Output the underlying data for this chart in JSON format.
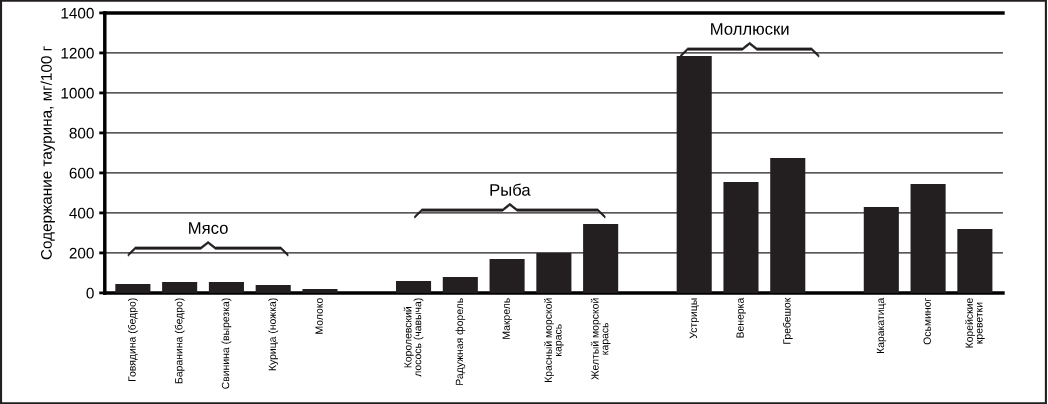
{
  "chart_data": {
    "type": "bar",
    "ylabel": "Содержание таурина, мг/100 г",
    "categories": [
      "Говядина (бедро)",
      "Баранина (бедро)",
      "Свинина (вырезка)",
      "Курица (ножка)",
      "Молоко",
      null,
      "Королевский\nлосось (чавыча)",
      "Радужная форель",
      "Макрель",
      "Красный морской\nкарась",
      "Желтый морской\nкарась",
      null,
      "Устрицы",
      "Венерка",
      "Гребешок",
      null,
      "Каракатица",
      "Осьминог",
      "Корейские\nкреветки"
    ],
    "values": [
      45,
      55,
      55,
      40,
      20,
      null,
      60,
      80,
      170,
      200,
      345,
      null,
      1185,
      555,
      675,
      null,
      430,
      545,
      320
    ],
    "color": "#231f20",
    "ylim": [
      0,
      1400
    ],
    "yticks": [
      0,
      200,
      400,
      600,
      800,
      1000,
      1200,
      1400
    ],
    "grid": "y",
    "annotations": [
      "Мясо",
      "Рыба",
      "Моллюски"
    ]
  }
}
